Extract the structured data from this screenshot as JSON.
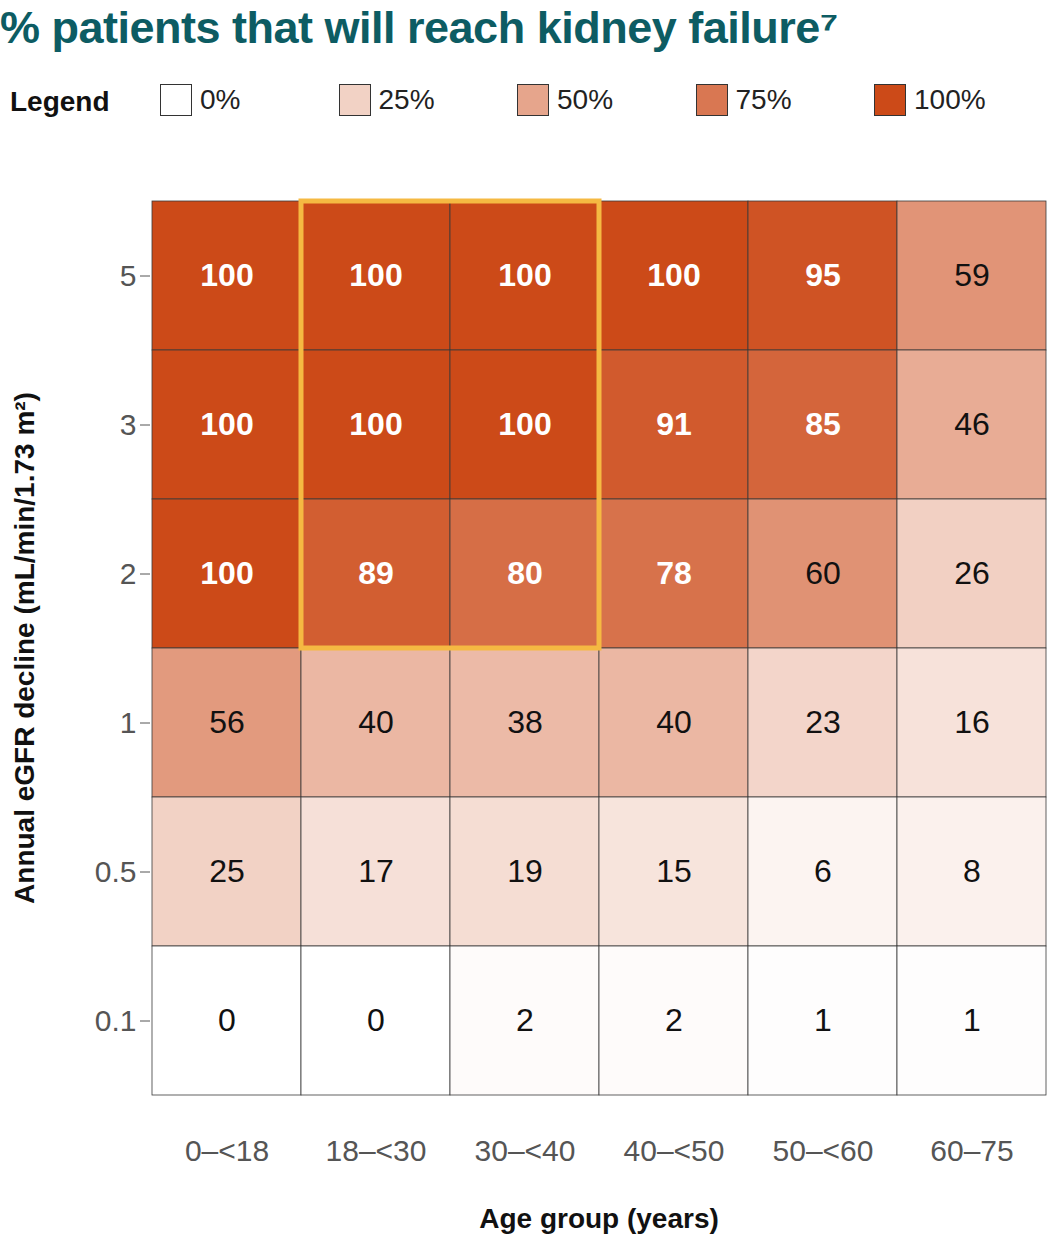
{
  "chart_data": {
    "type": "heatmap",
    "title": "% patients that will reach kidney failure⁷",
    "x_label": "Age group (years)",
    "y_label": "Annual eGFR decline (mL/min/1.73 m²)",
    "x": [
      "0–<18",
      "18–<30",
      "30–<40",
      "40–<50",
      "50–<60",
      "60–75"
    ],
    "y": [
      "5",
      "3",
      "2",
      "1",
      "0.5",
      "0.1"
    ],
    "values": [
      [
        100,
        100,
        100,
        100,
        95,
        59
      ],
      [
        100,
        100,
        100,
        91,
        85,
        46
      ],
      [
        100,
        89,
        80,
        78,
        60,
        26
      ],
      [
        56,
        40,
        38,
        40,
        23,
        16
      ],
      [
        25,
        17,
        19,
        15,
        6,
        8
      ],
      [
        0,
        0,
        2,
        2,
        1,
        1
      ]
    ],
    "data_labels": true,
    "colorbar": {
      "title": "Legend",
      "lim": [
        0,
        100
      ],
      "colors": [
        "#ffffff",
        "#cc4a18"
      ],
      "ticks": [
        {
          "value": 0,
          "label": "0%"
        },
        {
          "value": 25,
          "label": "25%"
        },
        {
          "value": 50,
          "label": "50%"
        },
        {
          "value": 75,
          "label": "75%"
        },
        {
          "value": 100,
          "label": "100%"
        }
      ]
    },
    "highlight": {
      "x": [
        "18–<30",
        "30–<40"
      ],
      "y": [
        "5",
        "3",
        "2"
      ],
      "color": "#f5b942"
    }
  }
}
